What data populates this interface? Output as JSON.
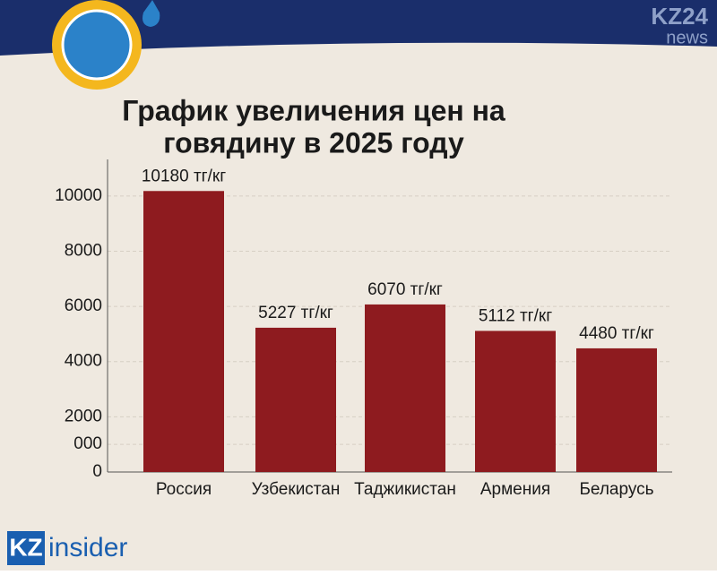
{
  "chart_data": {
    "type": "bar",
    "title": [
      "График увеличения цен на",
      "говядину в 2025 году"
    ],
    "categories": [
      "Россия",
      "Узбекистан",
      "Таджикистан",
      "Армения",
      "Беларусь"
    ],
    "values": [
      10180,
      5227,
      6070,
      5112,
      4480
    ],
    "value_labels": [
      "10180 тг/кг",
      "5227 тг/кг",
      "6070 тг/кг",
      "5112 тг/кг",
      "4480 тг/кг"
    ],
    "color": "#8e1b1f",
    "ylim": [
      0,
      11000
    ],
    "yticks": [
      0,
      {
        "value": 1000,
        "label": "000"
      },
      2000,
      4000,
      6000,
      8000,
      10000
    ],
    "grid": true
  },
  "brand": {
    "top": "KZ24",
    "top_sub": "news",
    "bottom_box": "KZ",
    "bottom_text": "insider"
  }
}
